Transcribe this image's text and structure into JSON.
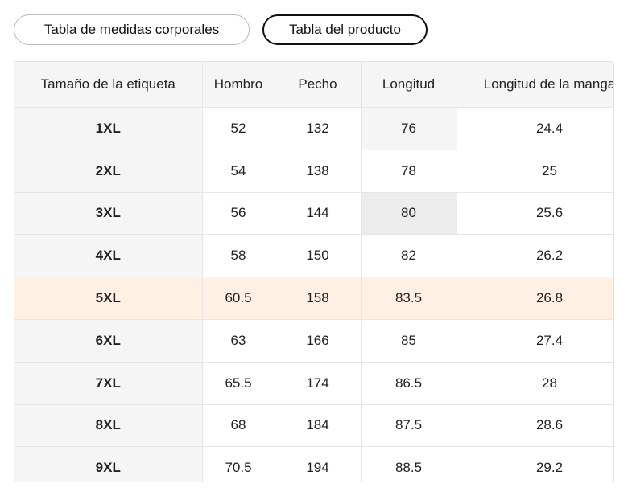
{
  "tabs": [
    "Tabla de medidas corporales",
    "Tabla del producto"
  ],
  "table": {
    "header": [
      "Tamaño de la etiqueta",
      "Hombro",
      "Pecho",
      "Longitud",
      "Longitud de la manga"
    ],
    "rows": [
      [
        "1XL",
        "52",
        "132",
        "76",
        "24.4"
      ],
      [
        "2XL",
        "54",
        "138",
        "78",
        "25"
      ],
      [
        "3XL",
        "56",
        "144",
        "80",
        "25.6"
      ],
      [
        "4XL",
        "58",
        "150",
        "82",
        "26.2"
      ],
      [
        "5XL",
        "60.5",
        "158",
        "83.5",
        "26.8"
      ],
      [
        "6XL",
        "63",
        "166",
        "85",
        "27.4"
      ],
      [
        "7XL",
        "65.5",
        "174",
        "86.5",
        "28"
      ],
      [
        "8XL",
        "68",
        "184",
        "87.5",
        "28.6"
      ],
      [
        "9XL",
        "70.5",
        "194",
        "88.5",
        "29.2"
      ]
    ]
  }
}
